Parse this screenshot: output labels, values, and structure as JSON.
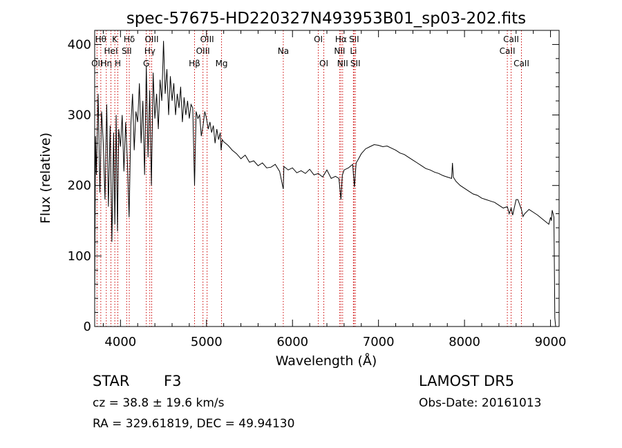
{
  "chart_data": {
    "type": "line",
    "title": "spec-57675-HD220327N493953B01_sp03-202.fits",
    "xlabel": "Wavelength (Å)",
    "ylabel": "Flux (relative)",
    "xlim": [
      3700,
      9100
    ],
    "ylim": [
      0,
      420
    ],
    "x_ticks": [
      4000,
      5000,
      6000,
      7000,
      8000,
      9000
    ],
    "y_ticks": [
      0,
      100,
      200,
      300,
      400
    ],
    "grid": false,
    "series": [
      {
        "x": [
          3700,
          3710,
          3720,
          3740,
          3760,
          3780,
          3800,
          3820,
          3840,
          3860,
          3880,
          3900,
          3920,
          3935,
          3950,
          3965,
          3980,
          4000,
          4020,
          4040,
          4060,
          4080,
          4100,
          4120,
          4140,
          4160,
          4180,
          4200,
          4220,
          4240,
          4260,
          4280,
          4300,
          4320,
          4340,
          4360,
          4380,
          4400,
          4420,
          4440,
          4460,
          4480,
          4500,
          4520,
          4540,
          4560,
          4580,
          4600,
          4620,
          4640,
          4660,
          4680,
          4700,
          4720,
          4740,
          4760,
          4780,
          4800,
          4820,
          4840,
          4861,
          4880,
          4900,
          4920,
          4940,
          4960,
          4980,
          5000,
          5020,
          5040,
          5060,
          5080,
          5100,
          5120,
          5140,
          5160,
          5170,
          5183,
          5200,
          5250,
          5300,
          5350,
          5400,
          5450,
          5500,
          5550,
          5600,
          5650,
          5700,
          5750,
          5800,
          5850,
          5893,
          5900,
          5950,
          6000,
          6050,
          6100,
          6150,
          6200,
          6250,
          6300,
          6350,
          6400,
          6450,
          6500,
          6540,
          6563,
          6580,
          6600,
          6650,
          6700,
          6720,
          6740,
          6760,
          6800,
          6850,
          6900,
          6950,
          7000,
          7050,
          7100,
          7150,
          7200,
          7250,
          7300,
          7350,
          7400,
          7450,
          7500,
          7550,
          7600,
          7650,
          7700,
          7750,
          7800,
          7850,
          7860,
          7870,
          7900,
          7950,
          8000,
          8050,
          8100,
          8150,
          8200,
          8250,
          8300,
          8350,
          8400,
          8450,
          8498,
          8520,
          8542,
          8560,
          8600,
          8620,
          8662,
          8680,
          8700,
          8750,
          8800,
          8850,
          8900,
          8950,
          8980,
          9000,
          9010,
          9020,
          9030,
          9040,
          9050,
          9060
        ],
        "y": [
          40,
          270,
          215,
          330,
          190,
          305,
          260,
          180,
          315,
          170,
          285,
          120,
          275,
          145,
          300,
          135,
          280,
          255,
          300,
          220,
          290,
          235,
          155,
          285,
          330,
          250,
          305,
          290,
          345,
          260,
          320,
          215,
          370,
          240,
          335,
          200,
          360,
          295,
          330,
          280,
          350,
          320,
          405,
          330,
          365,
          300,
          355,
          320,
          345,
          300,
          330,
          310,
          340,
          290,
          325,
          300,
          320,
          295,
          315,
          310,
          200,
          305,
          295,
          300,
          270,
          285,
          305,
          295,
          280,
          290,
          275,
          285,
          260,
          280,
          265,
          275,
          250,
          265,
          262,
          257,
          250,
          245,
          238,
          243,
          233,
          235,
          228,
          232,
          225,
          226,
          230,
          220,
          195,
          227,
          222,
          225,
          218,
          221,
          217,
          223,
          215,
          217,
          212,
          222,
          210,
          213,
          210,
          180,
          215,
          222,
          225,
          230,
          198,
          232,
          236,
          245,
          252,
          255,
          258,
          257,
          255,
          256,
          253,
          250,
          246,
          244,
          240,
          236,
          232,
          228,
          224,
          222,
          219,
          217,
          214,
          212,
          210,
          232,
          212,
          206,
          200,
          196,
          192,
          188,
          186,
          182,
          180,
          178,
          176,
          172,
          168,
          170,
          160,
          168,
          158,
          180,
          180,
          166,
          156,
          160,
          166,
          162,
          158,
          153,
          148,
          145,
          155,
          150,
          165,
          160,
          155,
          12,
          0
        ]
      }
    ],
    "line_markers": [
      {
        "x": 3727,
        "label": "OII",
        "row": 3
      },
      {
        "x": 3771,
        "label": "Hθ",
        "row": 1
      },
      {
        "x": 3835,
        "label": "Hη",
        "row": 3
      },
      {
        "x": 3889,
        "label": "HeI",
        "row": 2
      },
      {
        "x": 3934,
        "label": "K",
        "row": 1
      },
      {
        "x": 3969,
        "label": "H",
        "row": 3
      },
      {
        "x": 4072,
        "label": "SII",
        "row": 2
      },
      {
        "x": 4102,
        "label": "Hδ",
        "row": 1
      },
      {
        "x": 4300,
        "label": "G",
        "row": 3
      },
      {
        "x": 4341,
        "label": "Hγ",
        "row": 2
      },
      {
        "x": 4363,
        "label": "OIII",
        "row": 1
      },
      {
        "x": 4861,
        "label": "Hβ",
        "row": 3
      },
      {
        "x": 4959,
        "label": "OIII",
        "row": 2
      },
      {
        "x": 5007,
        "label": "OIII",
        "row": 1
      },
      {
        "x": 5175,
        "label": "Mg",
        "row": 3
      },
      {
        "x": 5893,
        "label": "Na",
        "row": 2
      },
      {
        "x": 6300,
        "label": "OI",
        "row": 1
      },
      {
        "x": 6364,
        "label": "OI",
        "row": 3
      },
      {
        "x": 6548,
        "label": "NII",
        "row": 2
      },
      {
        "x": 6563,
        "label": "Hα",
        "row": 1
      },
      {
        "x": 6583,
        "label": "NII",
        "row": 3
      },
      {
        "x": 6708,
        "label": "Li",
        "row": 2
      },
      {
        "x": 6716,
        "label": "SII",
        "row": 1
      },
      {
        "x": 6731,
        "label": "SII",
        "row": 3
      },
      {
        "x": 8498,
        "label": "CaII",
        "row": 2
      },
      {
        "x": 8542,
        "label": "CaII",
        "row": 1
      },
      {
        "x": 8662,
        "label": "CaII",
        "row": 3
      }
    ]
  },
  "info": {
    "object_class": "STAR",
    "subclass": "F3",
    "survey": "LAMOST DR5",
    "cz": "cz = 38.8 ± 19.6 km/s",
    "obs_date": "Obs-Date: 20161013",
    "coords": "RA = 329.61819, DEC =  49.94130"
  },
  "colors": {
    "spectrum": "#000000",
    "marker_line": "#cc0000",
    "axis": "#000000",
    "background": "#ffffff"
  }
}
